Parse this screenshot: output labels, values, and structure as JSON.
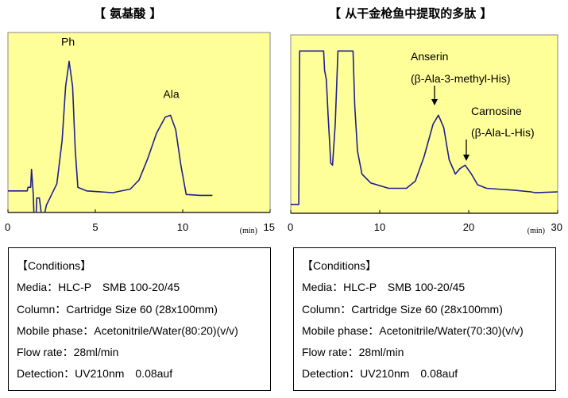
{
  "chart_data": [
    {
      "type": "line",
      "title": "【 氨基酸 】",
      "xlabel": "(min)",
      "xlim": [
        0,
        15
      ],
      "xticks": [
        0,
        5,
        10,
        15
      ],
      "ylim": [
        0,
        100
      ],
      "background": "#FFFF99",
      "line_color": "#1F1F8F",
      "annotations": [
        {
          "text": "Ph",
          "x": 3.5,
          "y": 84
        },
        {
          "text": "Ala",
          "x": 9.2,
          "y": 54
        }
      ],
      "series": [
        {
          "values": [
            [
              0,
              12
            ],
            [
              1.1,
              12
            ],
            [
              1.15,
              14
            ],
            [
              1.3,
              14
            ],
            [
              1.35,
              24
            ],
            [
              1.45,
              10
            ],
            [
              1.5,
              -5
            ],
            [
              1.6,
              -5
            ],
            [
              1.65,
              8
            ],
            [
              1.8,
              8
            ],
            [
              1.9,
              0
            ],
            [
              2.0,
              -5
            ],
            [
              2.2,
              4
            ],
            [
              2.5,
              10
            ],
            [
              2.8,
              16
            ],
            [
              3.1,
              40
            ],
            [
              3.3,
              70
            ],
            [
              3.5,
              84
            ],
            [
              3.7,
              70
            ],
            [
              3.85,
              35
            ],
            [
              4.0,
              14
            ],
            [
              4.5,
              12
            ],
            [
              6,
              11
            ],
            [
              7,
              13
            ],
            [
              7.5,
              18
            ],
            [
              8,
              30
            ],
            [
              8.5,
              44
            ],
            [
              9.0,
              53
            ],
            [
              9.3,
              54
            ],
            [
              9.6,
              46
            ],
            [
              9.9,
              26
            ],
            [
              10.2,
              10
            ],
            [
              11,
              9.5
            ],
            [
              11.7,
              9.5
            ]
          ]
        }
      ]
    },
    {
      "type": "line",
      "title": "【 从干金枪鱼中提取的多肽 】",
      "xlabel": "(min)",
      "xlim": [
        0,
        30
      ],
      "xticks": [
        0,
        10,
        20,
        30
      ],
      "ylim": [
        0,
        100
      ],
      "background": "#FFFF99",
      "line_color": "#1F1F8F",
      "annotations": [
        {
          "text": "Anserin",
          "sub": "(β-Ala-3-methyl-His)",
          "x": 16.6,
          "y": 55
        },
        {
          "text": "Carnosine",
          "sub": "(β-Ala-L-His)",
          "x": 19.7,
          "y": 27
        }
      ],
      "series": [
        {
          "values": [
            [
              0,
              5
            ],
            [
              0.9,
              5
            ],
            [
              1.0,
              91
            ],
            [
              3.7,
              91
            ],
            [
              3.8,
              80
            ],
            [
              4.0,
              75
            ],
            [
              4.2,
              55
            ],
            [
              4.5,
              28
            ],
            [
              4.7,
              27
            ],
            [
              5.0,
              50
            ],
            [
              5.3,
              91
            ],
            [
              7.0,
              91
            ],
            [
              7.2,
              60
            ],
            [
              7.5,
              35
            ],
            [
              8,
              22
            ],
            [
              9,
              17
            ],
            [
              11,
              14
            ],
            [
              13,
              14
            ],
            [
              14,
              18
            ],
            [
              15,
              32
            ],
            [
              16,
              50
            ],
            [
              16.6,
              55
            ],
            [
              17.2,
              48
            ],
            [
              17.8,
              30
            ],
            [
              18.5,
              22
            ],
            [
              19,
              25
            ],
            [
              19.6,
              27
            ],
            [
              20.3,
              22
            ],
            [
              21,
              16
            ],
            [
              22,
              14
            ],
            [
              25,
              13
            ],
            [
              27,
              12
            ],
            [
              27.5,
              11.5
            ],
            [
              30,
              12
            ]
          ]
        }
      ]
    }
  ],
  "conditions": [
    {
      "heading": "【Conditions】",
      "lines": [
        "Media：HLC-P　SMB 100-20/45",
        "Column：Cartridge Size 60 (28x100mm)",
        "Mobile phase：Acetonitrile/Water(80:20)(v/v)",
        "Flow rate：28ml/min",
        "Detection：UV210nm　0.08auf"
      ]
    },
    {
      "heading": "【Conditions】",
      "lines": [
        "Media：HLC-P　SMB 100-20/45",
        "Column：Cartridge Size 60 (28x100mm)",
        "Mobile phase：Acetonitrile/Water(70:30)(v/v)",
        "Flow rate：28ml/min",
        "Detection：UV210nm　0.08auf"
      ]
    }
  ]
}
